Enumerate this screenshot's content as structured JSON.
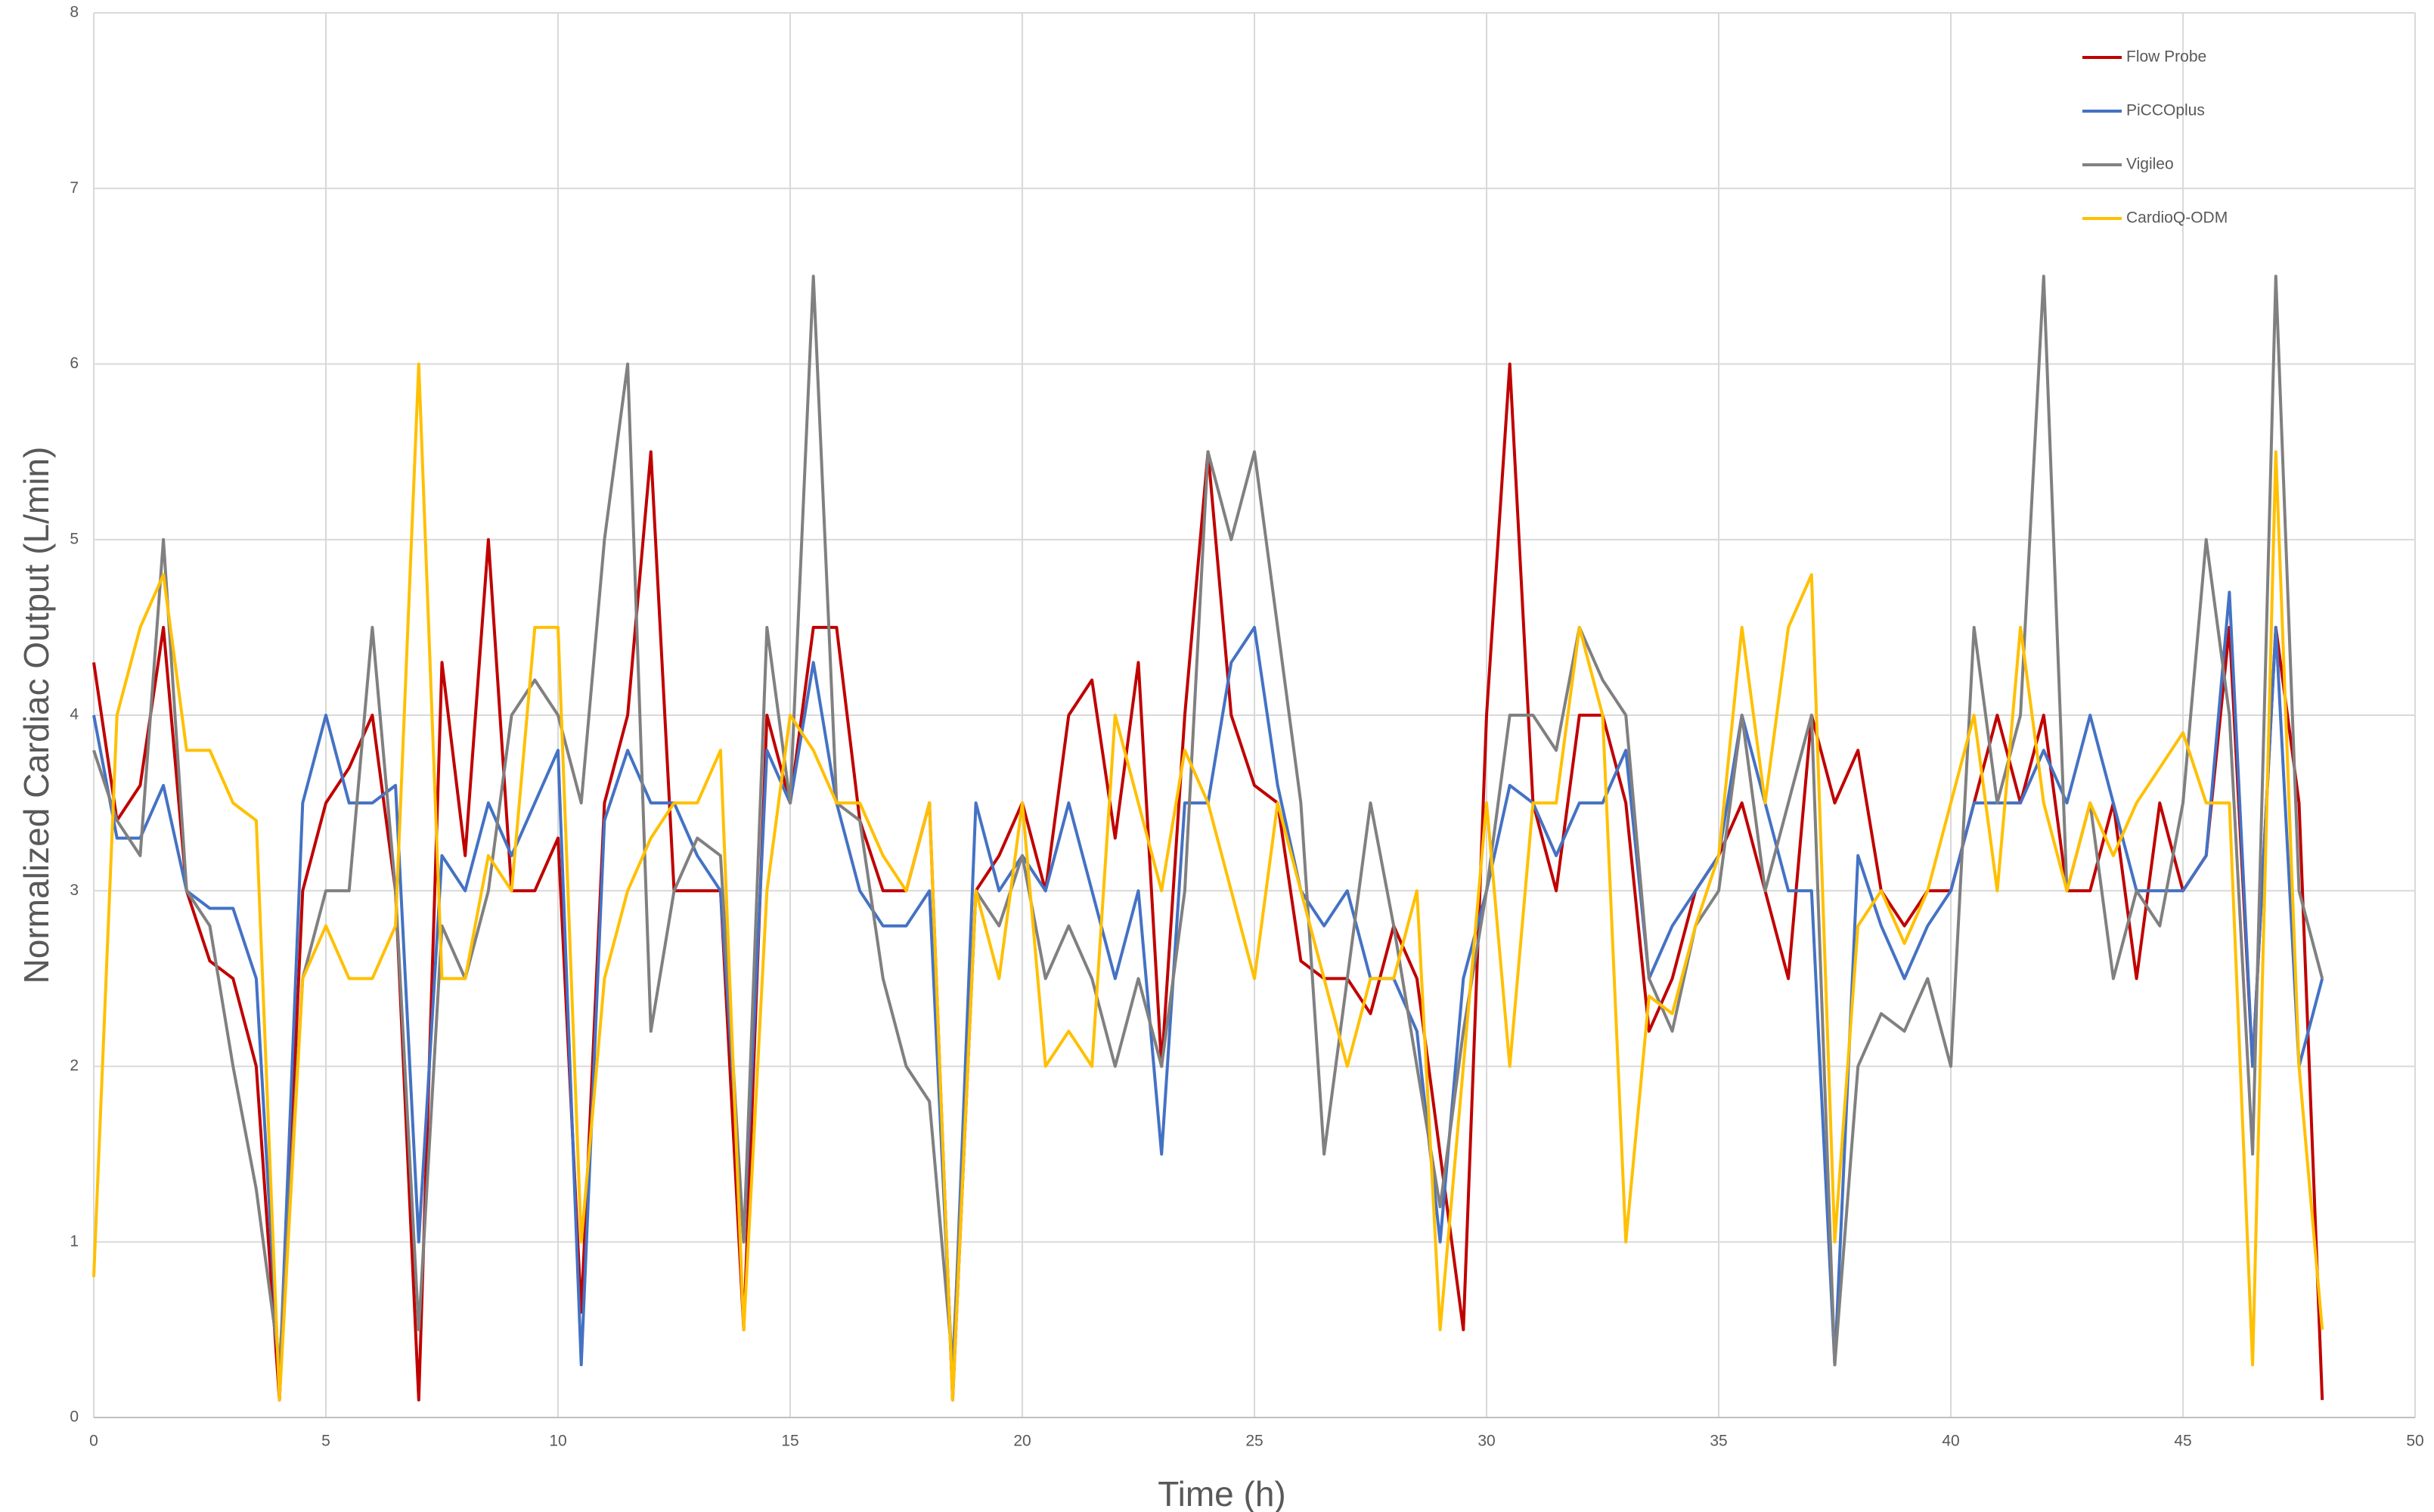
{
  "chart_data": {
    "type": "line",
    "xlabel": "Time (h)",
    "ylabel": "Normalized Cardiac Output (L/min)",
    "xlim": [
      0,
      50
    ],
    "xticks": [
      0,
      5,
      10,
      15,
      20,
      25,
      30,
      35,
      40,
      45,
      50
    ],
    "ylim": [
      0,
      8
    ],
    "yticks": [
      0,
      1,
      2,
      3,
      4,
      5,
      6,
      7,
      8
    ],
    "grid": true,
    "legend": "upper right",
    "x": [
      0,
      0.5,
      1,
      1.5,
      2,
      2.5,
      3,
      3.5,
      4,
      4.5,
      5,
      5.5,
      6,
      6.5,
      7,
      7.5,
      8,
      8.5,
      9,
      9.5,
      10,
      10.5,
      11,
      11.5,
      12,
      12.5,
      13,
      13.5,
      14,
      14.5,
      15,
      15.5,
      16,
      16.5,
      17,
      17.5,
      18,
      18.5,
      19,
      19.5,
      20,
      20.5,
      21,
      21.5,
      22,
      22.5,
      23,
      23.5,
      24,
      24.5,
      25,
      25.5,
      26,
      26.5,
      27,
      27.5,
      28,
      28.5,
      29,
      29.5,
      30,
      30.5,
      31,
      31.5,
      32,
      32.5,
      33,
      33.5,
      34,
      34.5,
      35,
      35.5,
      36,
      36.5,
      37,
      37.5,
      38,
      38.5,
      39,
      39.5,
      40,
      40.5,
      41,
      41.5,
      42,
      42.5,
      43,
      43.5,
      44,
      44.5,
      45,
      45.5,
      46,
      46.5,
      47,
      47.5,
      48
    ],
    "series": [
      {
        "name": "Flow Probe",
        "color": "#c00000",
        "values": [
          4.3,
          3.4,
          3.6,
          4.5,
          3.0,
          2.6,
          2.5,
          2.0,
          0.1,
          3.0,
          3.5,
          3.7,
          4.0,
          3.0,
          0.1,
          4.3,
          3.2,
          5.0,
          3.0,
          3.0,
          3.3,
          0.6,
          3.5,
          4.0,
          5.5,
          3.0,
          3.0,
          3.0,
          0.5,
          4.0,
          3.5,
          4.5,
          4.5,
          3.4,
          3.0,
          3.0,
          3.5,
          0.1,
          3.0,
          3.2,
          3.5,
          3.0,
          4.0,
          4.2,
          3.3,
          4.3,
          2.0,
          4.0,
          5.5,
          4.0,
          3.6,
          3.5,
          2.6,
          2.5,
          2.5,
          2.3,
          2.8,
          2.5,
          1.5,
          0.5,
          4.0,
          6.0,
          3.5,
          3.0,
          4.0,
          4.0,
          3.5,
          2.2,
          2.5,
          3.0,
          3.2,
          3.5,
          3.0,
          2.5,
          4.0,
          3.5,
          3.8,
          3.0,
          2.8,
          3.0,
          3.0,
          3.5,
          4.0,
          3.5,
          4.0,
          3.0,
          3.0,
          3.5,
          2.5,
          3.5,
          3.0,
          3.2,
          4.5,
          2.0,
          4.5,
          3.5,
          0.1
        ]
      },
      {
        "name": "PiCCOplus",
        "color": "#4472c4",
        "values": [
          4.0,
          3.3,
          3.3,
          3.6,
          3.0,
          2.9,
          2.9,
          2.5,
          0.2,
          3.5,
          4.0,
          3.5,
          3.5,
          3.6,
          1.0,
          3.2,
          3.0,
          3.5,
          3.2,
          3.5,
          3.8,
          0.3,
          3.4,
          3.8,
          3.5,
          3.5,
          3.2,
          3.0,
          1.0,
          3.8,
          3.5,
          4.3,
          3.5,
          3.0,
          2.8,
          2.8,
          3.0,
          0.2,
          3.5,
          3.0,
          3.2,
          3.0,
          3.5,
          3.0,
          2.5,
          3.0,
          1.5,
          3.5,
          3.5,
          4.3,
          4.5,
          3.6,
          3.0,
          2.8,
          3.0,
          2.5,
          2.5,
          2.2,
          1.0,
          2.5,
          3.0,
          3.6,
          3.5,
          3.2,
          3.5,
          3.5,
          3.8,
          2.5,
          2.8,
          3.0,
          3.2,
          4.0,
          3.5,
          3.0,
          3.0,
          0.3,
          3.2,
          2.8,
          2.5,
          2.8,
          3.0,
          3.5,
          3.5,
          3.5,
          3.8,
          3.5,
          4.0,
          3.5,
          3.0,
          3.0,
          3.0,
          3.2,
          4.7,
          2.0,
          4.5,
          2.0,
          2.5
        ]
      },
      {
        "name": "Vigileo",
        "color": "#808080",
        "values": [
          3.8,
          3.4,
          3.2,
          5.0,
          3.0,
          2.8,
          2.0,
          1.3,
          0.3,
          2.5,
          3.0,
          3.0,
          4.5,
          3.0,
          0.5,
          2.8,
          2.5,
          3.0,
          4.0,
          4.2,
          4.0,
          3.5,
          5.0,
          6.0,
          2.2,
          3.0,
          3.3,
          3.2,
          1.0,
          4.5,
          3.5,
          6.5,
          3.5,
          3.4,
          2.5,
          2.0,
          1.8,
          0.3,
          3.0,
          2.8,
          3.2,
          2.5,
          2.8,
          2.5,
          2.0,
          2.5,
          2.0,
          3.0,
          5.5,
          5.0,
          5.5,
          4.5,
          3.5,
          1.5,
          2.5,
          3.5,
          2.8,
          2.0,
          1.2,
          2.2,
          3.0,
          4.0,
          4.0,
          3.8,
          4.5,
          4.2,
          4.0,
          2.5,
          2.2,
          2.8,
          3.0,
          4.0,
          3.0,
          3.5,
          4.0,
          0.3,
          2.0,
          2.3,
          2.2,
          2.5,
          2.0,
          4.5,
          3.5,
          4.0,
          6.5,
          3.0,
          3.5,
          2.5,
          3.0,
          2.8,
          3.5,
          5.0,
          4.0,
          1.5,
          6.5,
          3.0,
          2.5
        ]
      },
      {
        "name": "CardioQ-ODM",
        "color": "#ffc000",
        "values": [
          0.8,
          4.0,
          4.5,
          4.8,
          3.8,
          3.8,
          3.5,
          3.4,
          0.1,
          2.5,
          2.8,
          2.5,
          2.5,
          2.8,
          6.0,
          2.5,
          2.5,
          3.2,
          3.0,
          4.5,
          4.5,
          1.0,
          2.5,
          3.0,
          3.3,
          3.5,
          3.5,
          3.8,
          0.5,
          3.0,
          4.0,
          3.8,
          3.5,
          3.5,
          3.2,
          3.0,
          3.5,
          0.1,
          3.0,
          2.5,
          3.5,
          2.0,
          2.2,
          2.0,
          4.0,
          3.5,
          3.0,
          3.8,
          3.5,
          3.0,
          2.5,
          3.5,
          3.0,
          2.5,
          2.0,
          2.5,
          2.5,
          3.0,
          0.5,
          2.0,
          3.5,
          2.0,
          3.5,
          3.5,
          4.5,
          4.0,
          1.0,
          2.4,
          2.3,
          2.8,
          3.2,
          4.5,
          3.5,
          4.5,
          4.8,
          1.0,
          2.8,
          3.0,
          2.7,
          3.0,
          3.5,
          4.0,
          3.0,
          4.5,
          3.5,
          3.0,
          3.5,
          3.2,
          3.5,
          3.7,
          3.9,
          3.5,
          3.5,
          0.3,
          5.5,
          2.0,
          0.5
        ]
      }
    ]
  }
}
